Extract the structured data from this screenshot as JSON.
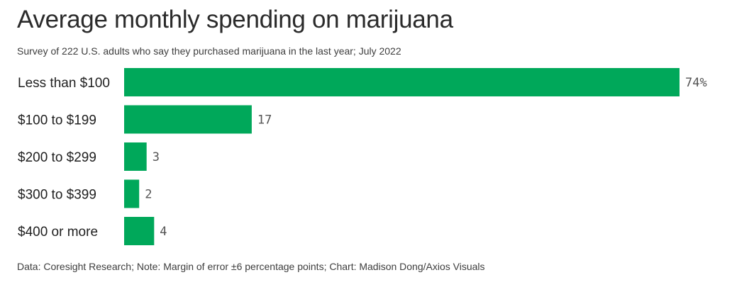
{
  "chart_data": {
    "type": "bar",
    "orientation": "horizontal",
    "title": "Average monthly spending on marijuana",
    "subtitle": "Survey of 222 U.S. adults who say they purchased marijuana in the last year; July 2022",
    "categories": [
      "Less than $100",
      "$100 to $199",
      "$200 to $299",
      "$300 to $399",
      "$400 or more"
    ],
    "values": [
      74,
      17,
      3,
      2,
      4
    ],
    "value_labels": [
      "74%",
      "17",
      "3",
      "2",
      "4"
    ],
    "xlim": [
      0,
      74
    ],
    "unit": "%",
    "grid": false,
    "bar_color": "#00a85a",
    "footer": "Data: Coresight Research; Note: Margin of error ±6 percentage points; Chart: Madison Dong/Axios Visuals"
  }
}
